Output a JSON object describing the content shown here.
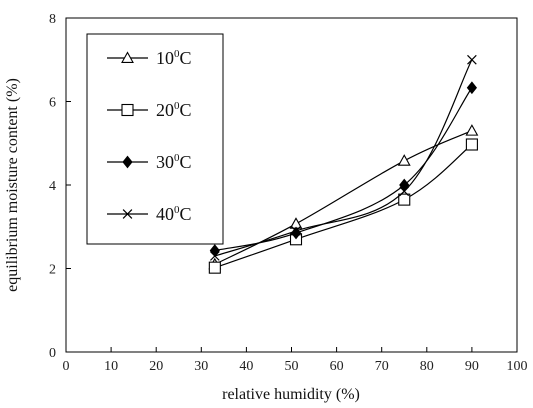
{
  "chart_data": {
    "type": "line",
    "title": "",
    "xlabel": "relative humidity (%)",
    "ylabel": "equilibrium moisture content (%)",
    "xlim": [
      0,
      100
    ],
    "ylim": [
      0,
      8
    ],
    "x_ticks": [
      0,
      10,
      20,
      30,
      40,
      50,
      60,
      70,
      80,
      90,
      100
    ],
    "y_ticks": [
      0,
      2,
      4,
      6,
      8
    ],
    "grid": false,
    "legend_position": "top-left",
    "x": [
      33,
      51,
      75,
      90
    ],
    "series": [
      {
        "name": "10",
        "unit_sup": "0",
        "unit": "C",
        "marker": "triangle",
        "values": [
          2.1,
          3.07,
          4.58,
          5.3
        ]
      },
      {
        "name": "20",
        "unit_sup": "0",
        "unit": "C",
        "marker": "square",
        "values": [
          2.02,
          2.7,
          3.65,
          4.97
        ]
      },
      {
        "name": "30",
        "unit_sup": "0",
        "unit": "C",
        "marker": "diamond",
        "values": [
          2.43,
          2.85,
          4.0,
          6.33
        ]
      },
      {
        "name": "40",
        "unit_sup": "0",
        "unit": "C",
        "marker": "cross",
        "values": [
          2.3,
          2.9,
          3.85,
          7.0
        ]
      }
    ],
    "colors": {
      "line": "#000000",
      "marker_fill": "#ffffff",
      "diamond_fill": "#000000"
    }
  }
}
